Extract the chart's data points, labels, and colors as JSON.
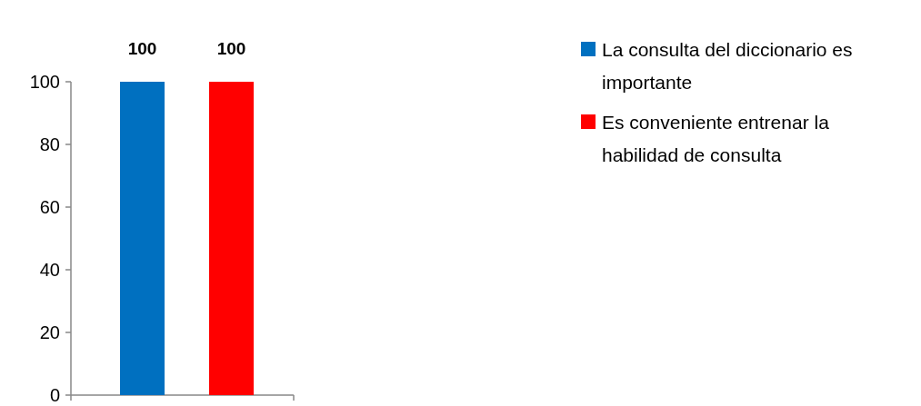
{
  "chart_data": {
    "type": "bar",
    "categories": [
      null
    ],
    "series": [
      {
        "name": "La consulta del diccionario es importante",
        "color": "#0070c0",
        "values": [
          100
        ]
      },
      {
        "name": "Es conveniente entrenar la habilidad de consulta",
        "color": "#ff0000",
        "values": [
          100
        ]
      }
    ],
    "ylim": [
      0,
      100
    ],
    "yticks": [
      0,
      20,
      40,
      60,
      80,
      100
    ],
    "data_labels": true,
    "legend": "right"
  }
}
